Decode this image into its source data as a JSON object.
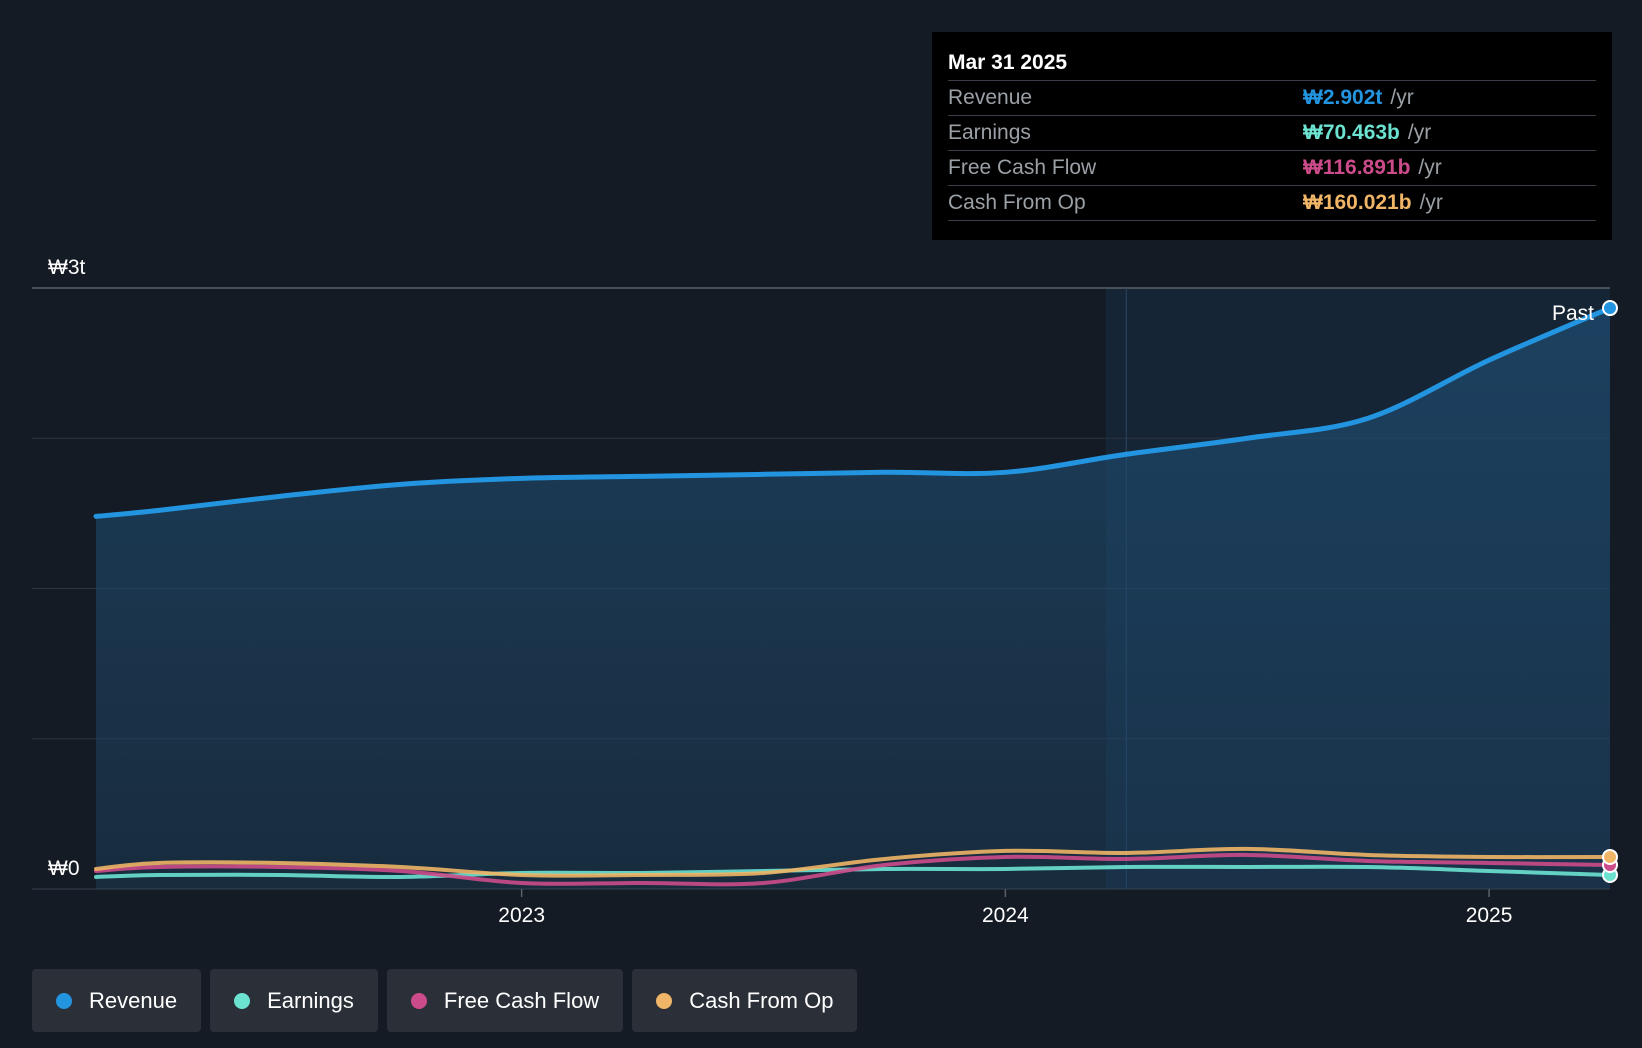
{
  "tooltip": {
    "date": "Mar 31 2025",
    "rows": [
      {
        "label": "Revenue",
        "value": "₩2.902t",
        "unit": "/yr",
        "color": "#2394df"
      },
      {
        "label": "Earnings",
        "value": "₩70.463b",
        "unit": "/yr",
        "color": "#6ce2d1"
      },
      {
        "label": "Free Cash Flow",
        "value": "₩116.891b",
        "unit": "/yr",
        "color": "#cc4b8a"
      },
      {
        "label": "Cash From Op",
        "value": "₩160.021b",
        "unit": "/yr",
        "color": "#f0b566"
      }
    ]
  },
  "past_label": "Past",
  "legend": [
    {
      "label": "Revenue",
      "color": "#2394df"
    },
    {
      "label": "Earnings",
      "color": "#6ce2d1"
    },
    {
      "label": "Free Cash Flow",
      "color": "#cc4b8a"
    },
    {
      "label": "Cash From Op",
      "color": "#f0b566"
    }
  ],
  "chart_data": {
    "type": "line",
    "y_tick_labels": [
      "₩0",
      "₩3t"
    ],
    "ylim": [
      0,
      3.0
    ],
    "xlim": [
      2022.12,
      2025.25
    ],
    "x_ticks": [
      {
        "value": 2023.0,
        "label": "2023"
      },
      {
        "value": 2024.0,
        "label": "2024"
      },
      {
        "value": 2025.0,
        "label": "2025"
      }
    ],
    "grid": true,
    "past_divider_x": 2024.25,
    "series": [
      {
        "name": "Revenue",
        "color": "#2394df",
        "x": [
          2022.12,
          2022.25,
          2022.5,
          2022.75,
          2023.0,
          2023.25,
          2023.5,
          2023.75,
          2024.0,
          2024.25,
          2024.5,
          2024.75,
          2025.0,
          2025.25
        ],
        "y": [
          1.86,
          1.89,
          1.96,
          2.02,
          2.05,
          2.06,
          2.07,
          2.08,
          2.08,
          2.17,
          2.25,
          2.35,
          2.64,
          2.9
        ]
      },
      {
        "name": "Earnings",
        "color": "#6ce2d1",
        "x": [
          2022.12,
          2022.25,
          2022.5,
          2022.75,
          2023.0,
          2023.25,
          2023.5,
          2023.75,
          2024.0,
          2024.25,
          2024.5,
          2024.75,
          2025.0,
          2025.25
        ],
        "y": [
          0.06,
          0.07,
          0.07,
          0.06,
          0.08,
          0.08,
          0.09,
          0.1,
          0.1,
          0.11,
          0.11,
          0.11,
          0.09,
          0.07
        ]
      },
      {
        "name": "Free Cash Flow",
        "color": "#cc4b8a",
        "x": [
          2022.12,
          2022.25,
          2022.5,
          2022.75,
          2023.0,
          2023.25,
          2023.5,
          2023.75,
          2024.0,
          2024.25,
          2024.5,
          2024.75,
          2025.0,
          2025.25
        ],
        "y": [
          0.09,
          0.11,
          0.11,
          0.09,
          0.03,
          0.03,
          0.03,
          0.12,
          0.16,
          0.15,
          0.17,
          0.14,
          0.13,
          0.12
        ]
      },
      {
        "name": "Cash From Op",
        "color": "#f0b566",
        "x": [
          2022.12,
          2022.25,
          2022.5,
          2022.75,
          2023.0,
          2023.25,
          2023.5,
          2023.75,
          2024.0,
          2024.25,
          2024.5,
          2024.75,
          2025.0,
          2025.25
        ],
        "y": [
          0.1,
          0.13,
          0.13,
          0.11,
          0.07,
          0.07,
          0.08,
          0.15,
          0.19,
          0.18,
          0.2,
          0.17,
          0.16,
          0.16
        ]
      }
    ]
  }
}
